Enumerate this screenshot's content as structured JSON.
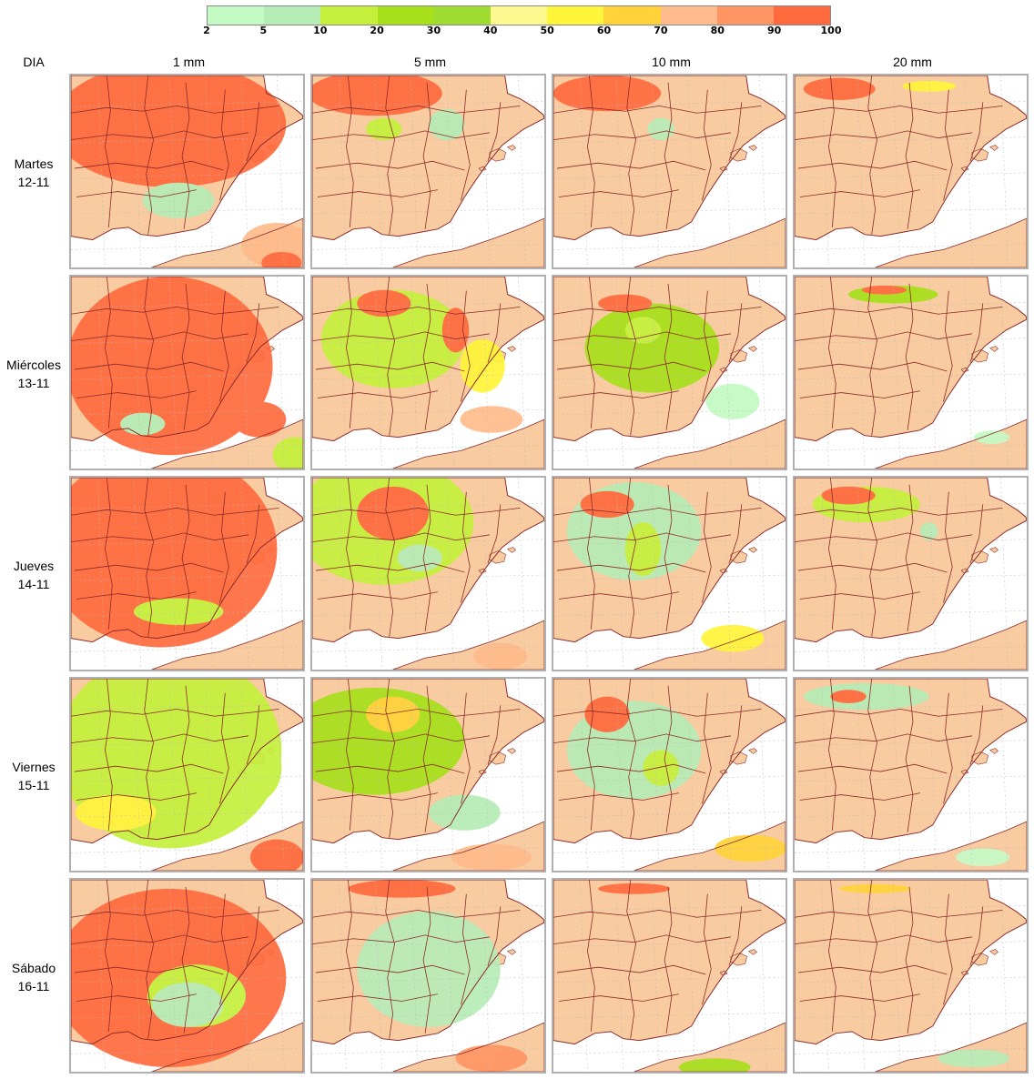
{
  "legend": {
    "colors": [
      "#c4fac4",
      "#b6ecb6",
      "#c4f03c",
      "#a6e01a",
      "#9fdc32",
      "#fff98f",
      "#fff53a",
      "#ffd23a",
      "#ffbb8c",
      "#ff9563",
      "#ff6a3d"
    ],
    "labels": [
      "2",
      "5",
      "10",
      "20",
      "30",
      "40",
      "50",
      "60",
      "70",
      "80",
      "90",
      "100"
    ]
  },
  "header": {
    "dia": "DIA",
    "columns": [
      "1 mm",
      "5 mm",
      "10 mm",
      "20 mm"
    ]
  },
  "rows": [
    {
      "day": "Martes",
      "date": "12-11"
    },
    {
      "day": "Miércoles",
      "date": "13-11"
    },
    {
      "day": "Jueves",
      "date": "14-11"
    },
    {
      "day": "Viernes",
      "date": "15-11"
    },
    {
      "day": "Sábado",
      "date": "16-11"
    }
  ],
  "map_colors": {
    "land": "#f8cba0",
    "sea": "#ffffff",
    "border": "#8b2a2a"
  }
}
